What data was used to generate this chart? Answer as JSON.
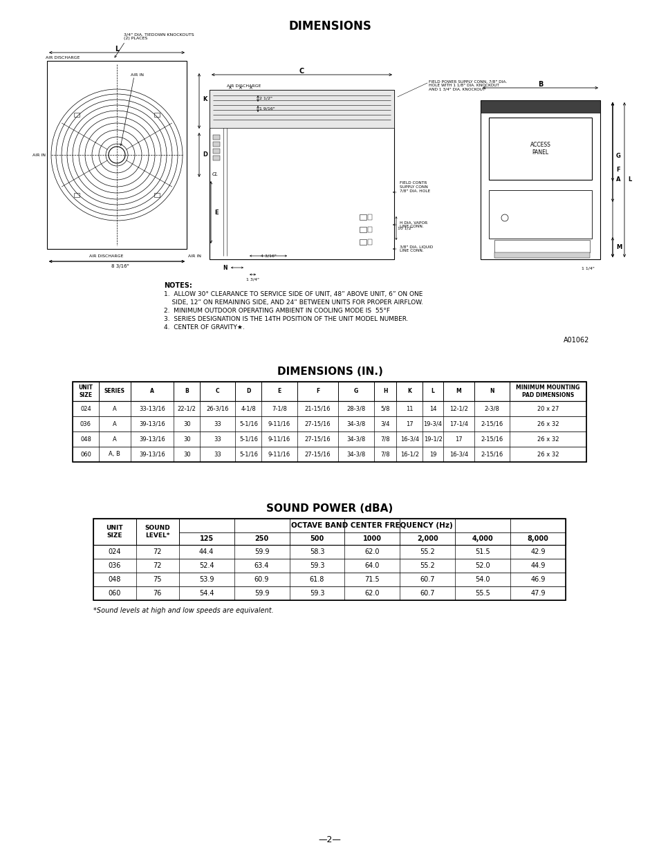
{
  "title_dimensions": "DIMENSIONS",
  "title_dimensions_in": "DIMENSIONS (IN.)",
  "title_sound_power": "SOUND POWER (dBA)",
  "background_color": "#ffffff",
  "notes": [
    "NOTES:",
    "1.  ALLOW 30° CLEARANCE TO SERVICE SIDE OF UNIT, 48” ABOVE UNIT, 6” ON ONE",
    "    SIDE, 12” ON REMAINING SIDE, AND 24” BETWEEN UNITS FOR PROPER AIRFLOW.",
    "2.  MINIMUM OUTDOOR OPERATING AMBIENT IN COOLING MODE IS  55°F",
    "3.  SERIES DESIGNATION IS THE 14TH POSITION OF THE UNIT MODEL NUMBER.",
    "4.  CENTER OF GRAVITY★."
  ],
  "drawing_ref": "A01062",
  "dim_table_headers": [
    "UNIT\nSIZE",
    "SERIES",
    "A",
    "B",
    "C",
    "D",
    "E",
    "F",
    "G",
    "H",
    "K",
    "L",
    "M",
    "N",
    "MINIMUM MOUNTING\nPAD DIMENSIONS"
  ],
  "dim_table_rows": [
    [
      "024",
      "A",
      "33-13/16",
      "22-1/2",
      "26-3/16",
      "4-1/8",
      "7-1/8",
      "21-15/16",
      "28-3/8",
      "5/8",
      "11",
      "14",
      "12-1/2",
      "2-3/8",
      "20 x 27"
    ],
    [
      "036",
      "A",
      "39-13/16",
      "30",
      "33",
      "5-1/16",
      "9-11/16",
      "27-15/16",
      "34-3/8",
      "3/4",
      "17",
      "19-3/4",
      "17-1/4",
      "2-15/16",
      "26 x 32"
    ],
    [
      "048",
      "A",
      "39-13/16",
      "30",
      "33",
      "5-1/16",
      "9-11/16",
      "27-15/16",
      "34-3/8",
      "7/8",
      "16-3/4",
      "19-1/2",
      "17",
      "2-15/16",
      "26 x 32"
    ],
    [
      "060",
      "A, B",
      "39-13/16",
      "30",
      "33",
      "5-1/16",
      "9-11/16",
      "27-15/16",
      "34-3/8",
      "7/8",
      "16-1/2",
      "19",
      "16-3/4",
      "2-15/16",
      "26 x 32"
    ]
  ],
  "sound_table_rows": [
    [
      "024",
      "72",
      "44.4",
      "59.9",
      "58.3",
      "62.0",
      "55.2",
      "51.5",
      "42.9"
    ],
    [
      "036",
      "72",
      "52.4",
      "63.4",
      "59.3",
      "64.0",
      "55.2",
      "52.0",
      "44.9"
    ],
    [
      "048",
      "75",
      "53.9",
      "60.9",
      "61.8",
      "71.5",
      "60.7",
      "54.0",
      "46.9"
    ],
    [
      "060",
      "76",
      "54.4",
      "59.9",
      "59.3",
      "62.0",
      "60.7",
      "55.5",
      "47.9"
    ]
  ],
  "sound_footnote": "*Sound levels at high and low speeds are equivalent.",
  "page_number": "—2—",
  "diag_notes_label": "3/4\" DIA. TIEDOWN KNOCKOUTS\n(2) PLACES",
  "diag_field_power": "FIELD POWER SUPPLY CONN, 7/8\" DIA.\nHOLE WITH 1 1/8\" DIA. KNOCKOUT\nAND 1 3/4\" DIA. KNOCKOUT",
  "diag_field_contr": "FIELD CONTR\nSUPPLY CONN\n7/8\" DIA. HOLE",
  "diag_vapor": "H DIA. VAPOR\nLINE CONN.",
  "diag_liquid": "3/8\" DIA. LIQUID\nLINE CONN.",
  "diag_10_12": "10 1/2\"",
  "diag_4_316": "4 3/16\"",
  "diag_2_12": "2 1/2\"",
  "diag_1_916": "1 9/16\"",
  "diag_n_dim": "1 3/4\"",
  "diag_8_316": "8 3/16\"",
  "diag_l_114": "1 1/4\"",
  "diag_access_panel": "ACCESS\nPANEL"
}
